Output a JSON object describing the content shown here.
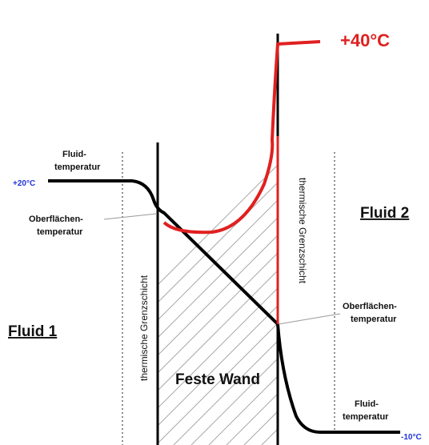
{
  "top_temperature": "+40°C",
  "left_fluid_temperature": [
    "Fluid-",
    "temperatur"
  ],
  "left_temperature": "+20°C",
  "left_surface_temperature": [
    "Oberflächen-",
    "temperatur"
  ],
  "left_boundary_layer": "thermische Grenzschicht",
  "right_boundary_layer": "thermische Grenzschicht",
  "fluid_2": "Fluid 2",
  "fluid_1": "Fluid 1",
  "wall": "Feste Wand",
  "right_surface_temperature": [
    "Oberflächen-",
    "temperatur"
  ],
  "right_fluid_temperature": [
    "Fluid-",
    "temperatur"
  ],
  "right_temperature": "-10°C"
}
